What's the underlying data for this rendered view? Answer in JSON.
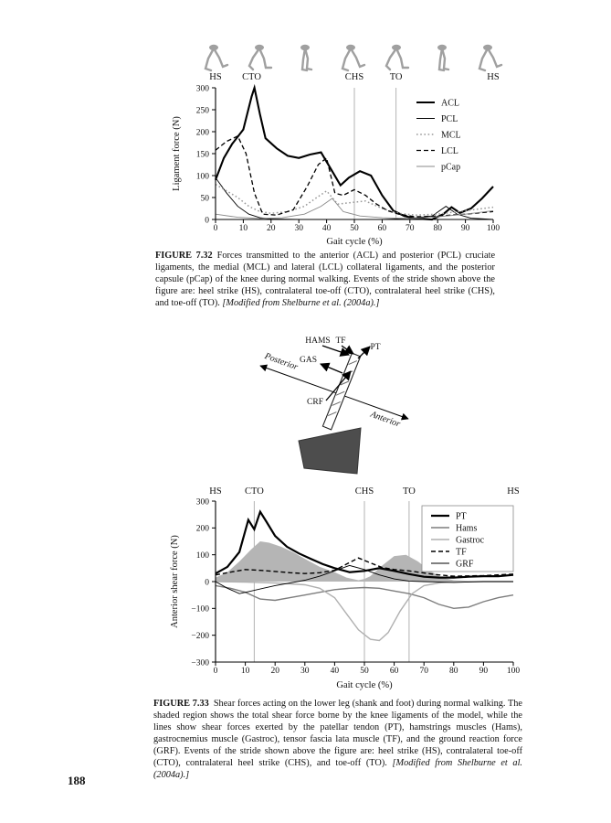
{
  "page": {
    "number": "188"
  },
  "figure_7_32": {
    "caption_label": "FIGURE 7.32",
    "caption_body": "Forces transmitted to the anterior (ACL) and posterior (PCL) cruciate ligaments, the medial (MCL) and lateral (LCL) collateral ligaments, and the posterior capsule (pCap) of the knee during normal walking. Events of the stride shown above the figure are: heel strike (HS), contralateral toe-off (CTO), contralateral heel strike (CHS), and toe-off (TO).",
    "caption_source": "[Modified from Shelburne et al. (2004a).]"
  },
  "figure_7_33": {
    "caption_label": "FIGURE 7.33",
    "caption_body": "Shear forces acting on the lower leg (shank and foot) during normal walking. The shaded region shows the total shear force borne by the knee ligaments of the model, while the lines show shear forces exerted by the patellar tendon (PT), hamstrings muscles (Hams), gastrocnemius muscle (Gastroc), tensor fascia lata muscle (TF), and the ground reaction force (GRF). Events of the stride shown above the figure are: heel strike (HS), contralateral toe-off (CTO), contralateral heel strike (CHS), and toe-off (TO).",
    "caption_source": "[Modified from Shelburne et al. (2004a).]"
  },
  "diagram": {
    "labels": {
      "hams": "HAMS",
      "tf": "TF",
      "pt": "PT",
      "gas": "GAS",
      "crf": "CRF",
      "posterior": "Posterior",
      "anterior": "Anterior"
    }
  },
  "chart_data": [
    {
      "type": "line",
      "title": "",
      "xlabel": "Gait cycle (%)",
      "ylabel": "Ligament force (N)",
      "xlim": [
        0,
        100
      ],
      "ylim": [
        0,
        300
      ],
      "xticks": [
        0,
        10,
        20,
        30,
        40,
        50,
        60,
        70,
        80,
        90,
        100
      ],
      "yticks": [
        0,
        50,
        100,
        150,
        200,
        250,
        300
      ],
      "grid": false,
      "legend_position": "top-right",
      "events": [
        {
          "label": "HS",
          "x": 0,
          "line": false
        },
        {
          "label": "CTO",
          "x": 13,
          "line": false
        },
        {
          "label": "CHS",
          "x": 50,
          "line": true
        },
        {
          "label": "TO",
          "x": 65,
          "line": true
        },
        {
          "label": "HS",
          "x": 100,
          "line": false
        }
      ],
      "series": [
        {
          "name": "ACL",
          "color": "#000000",
          "width": 2.1,
          "dash": "",
          "x": [
            0,
            3,
            6,
            10,
            13,
            14,
            16,
            18,
            22,
            26,
            30,
            34,
            38,
            42,
            45,
            48,
            52,
            56,
            60,
            64,
            68,
            72,
            78,
            82,
            85,
            88,
            92,
            96,
            100
          ],
          "y": [
            90,
            140,
            172,
            205,
            280,
            300,
            240,
            185,
            162,
            145,
            140,
            148,
            153,
            110,
            78,
            95,
            110,
            100,
            55,
            20,
            8,
            2,
            0,
            12,
            28,
            15,
            25,
            48,
            75
          ]
        },
        {
          "name": "PCL",
          "color": "#000000",
          "width": 0.9,
          "dash": "",
          "x": [
            0,
            4,
            8,
            12,
            16,
            20,
            30,
            40,
            50,
            60,
            70,
            78,
            83,
            87,
            92,
            100
          ],
          "y": [
            95,
            60,
            30,
            12,
            4,
            1,
            0,
            0,
            0,
            0,
            2,
            8,
            30,
            12,
            3,
            0
          ]
        },
        {
          "name": "MCL",
          "color": "#999999",
          "width": 1.5,
          "dash": "1.6,2.6",
          "x": [
            0,
            4,
            8,
            12,
            16,
            20,
            26,
            32,
            36,
            40,
            44,
            48,
            54,
            60,
            66,
            72,
            80,
            90,
            100
          ],
          "y": [
            80,
            65,
            50,
            30,
            18,
            14,
            18,
            30,
            48,
            65,
            35,
            38,
            42,
            25,
            14,
            10,
            12,
            20,
            28
          ]
        },
        {
          "name": "LCL",
          "color": "#000000",
          "width": 1.3,
          "dash": "5,3",
          "x": [
            0,
            4,
            8,
            11,
            14,
            17,
            22,
            28,
            33,
            37,
            40,
            43,
            46,
            50,
            54,
            58,
            62,
            66,
            72,
            80,
            90,
            100
          ],
          "y": [
            158,
            178,
            190,
            150,
            60,
            12,
            10,
            22,
            75,
            125,
            140,
            60,
            55,
            68,
            55,
            35,
            20,
            12,
            6,
            8,
            12,
            18
          ]
        },
        {
          "name": "pCap",
          "color": "#8a8a8a",
          "width": 0.9,
          "dash": "",
          "x": [
            0,
            8,
            16,
            24,
            32,
            38,
            42,
            46,
            52,
            60,
            70,
            80,
            90,
            100
          ],
          "y": [
            12,
            5,
            2,
            4,
            12,
            30,
            48,
            18,
            8,
            4,
            2,
            6,
            12,
            20
          ]
        }
      ]
    },
    {
      "type": "line",
      "title": "",
      "xlabel": "Gait cycle (%)",
      "ylabel": "Anterior shear force (N)",
      "xlim": [
        0,
        100
      ],
      "ylim": [
        -300,
        300
      ],
      "xticks": [
        0,
        10,
        20,
        30,
        40,
        50,
        60,
        70,
        80,
        90,
        100
      ],
      "yticks": [
        -300,
        -200,
        -100,
        0,
        100,
        200,
        300
      ],
      "grid": false,
      "legend_position": "top-right",
      "shaded_region_meaning": "Total shear force borne by the knee ligaments",
      "events": [
        {
          "label": "HS",
          "x": 0,
          "line": false
        },
        {
          "label": "CTO",
          "x": 13,
          "line": true
        },
        {
          "label": "CHS",
          "x": 50,
          "line": true
        },
        {
          "label": "TO",
          "x": 65,
          "line": true
        },
        {
          "label": "HS",
          "x": 100,
          "line": false
        }
      ],
      "series": [
        {
          "name": "Ligament shear (shaded)",
          "fill": "#b5b5b5",
          "x": [
            0,
            4,
            8,
            12,
            15,
            18,
            22,
            26,
            30,
            35,
            40,
            44,
            48,
            50,
            52,
            56,
            60,
            64,
            68,
            72,
            76,
            80,
            90,
            100
          ],
          "y": [
            15,
            35,
            75,
            120,
            150,
            145,
            130,
            110,
            85,
            55,
            35,
            15,
            5,
            10,
            20,
            60,
            95,
            100,
            75,
            40,
            15,
            5,
            0,
            0
          ]
        },
        {
          "name": "PT",
          "color": "#000000",
          "width": 2.2,
          "dash": "",
          "x": [
            0,
            4,
            8,
            11,
            13,
            15,
            17,
            20,
            24,
            28,
            32,
            36,
            40,
            45,
            50,
            55,
            60,
            65,
            70,
            75,
            80,
            85,
            90,
            95,
            100
          ],
          "y": [
            30,
            55,
            110,
            230,
            195,
            260,
            225,
            170,
            130,
            105,
            85,
            65,
            50,
            35,
            40,
            50,
            40,
            28,
            18,
            15,
            15,
            18,
            20,
            20,
            25
          ]
        },
        {
          "name": "Hams",
          "color": "#7d7d7d",
          "width": 1.4,
          "dash": "",
          "x": [
            0,
            5,
            10,
            15,
            20,
            25,
            30,
            35,
            40,
            45,
            50,
            55,
            60,
            65,
            70,
            75,
            80,
            85,
            90,
            95,
            100
          ],
          "y": [
            -15,
            -25,
            -40,
            -65,
            -70,
            -60,
            -50,
            -40,
            -30,
            -25,
            -22,
            -25,
            -35,
            -45,
            -60,
            -85,
            -100,
            -95,
            -75,
            -60,
            -50
          ]
        },
        {
          "name": "Gastroc",
          "color": "#b0b0b0",
          "width": 1.4,
          "dash": "",
          "x": [
            0,
            10,
            20,
            30,
            35,
            40,
            44,
            48,
            52,
            55,
            58,
            62,
            66,
            70,
            75,
            80,
            90,
            100
          ],
          "y": [
            0,
            -2,
            -5,
            -12,
            -25,
            -60,
            -120,
            -180,
            -215,
            -220,
            -190,
            -110,
            -45,
            -15,
            -5,
            0,
            0,
            0
          ]
        },
        {
          "name": "TF",
          "color": "#000000",
          "width": 1.4,
          "dash": "5,3",
          "x": [
            0,
            5,
            10,
            15,
            20,
            25,
            30,
            35,
            40,
            44,
            48,
            52,
            56,
            60,
            65,
            70,
            75,
            80,
            90,
            100
          ],
          "y": [
            25,
            35,
            45,
            42,
            38,
            33,
            30,
            33,
            42,
            65,
            88,
            70,
            52,
            45,
            40,
            32,
            25,
            20,
            22,
            28
          ]
        },
        {
          "name": "GRF",
          "color": "#000000",
          "width": 0.9,
          "dash": "",
          "x": [
            0,
            4,
            8,
            12,
            16,
            20,
            25,
            30,
            35,
            40,
            45,
            50,
            55,
            60,
            65,
            70,
            80,
            90,
            100
          ],
          "y": [
            0,
            -25,
            -45,
            -35,
            -25,
            -15,
            -5,
            5,
            20,
            40,
            60,
            45,
            25,
            10,
            2,
            0,
            -3,
            0,
            0
          ]
        }
      ]
    }
  ]
}
